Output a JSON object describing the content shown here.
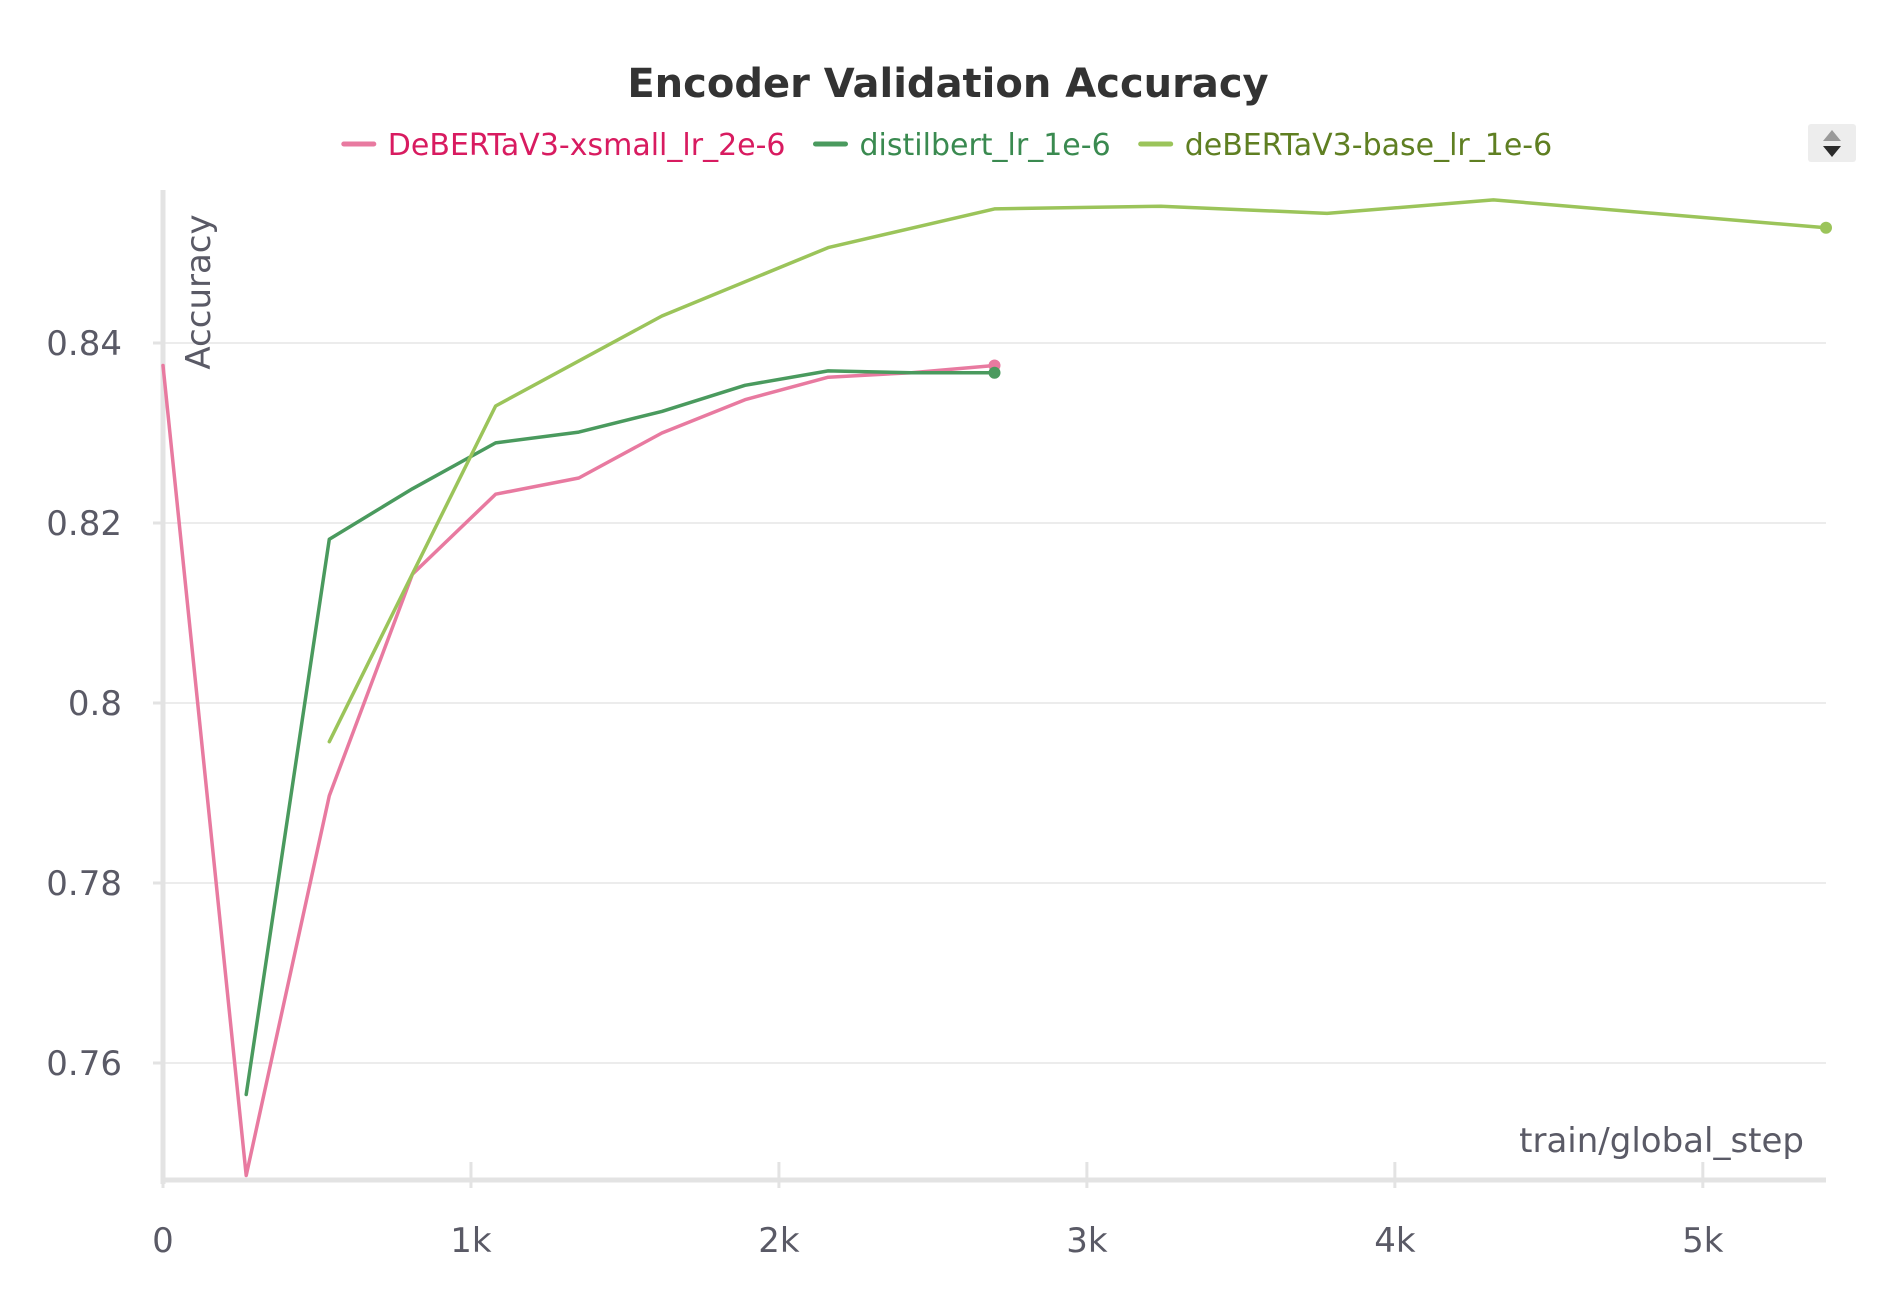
{
  "chart_data": {
    "type": "line",
    "title": "Encoder Validation Accuracy",
    "xlabel": "train/global_step",
    "ylabel": "Accuracy",
    "xlim": [
      0,
      5400
    ],
    "ylim": [
      0.747,
      0.857
    ],
    "x_ticks": [
      0,
      1000,
      2000,
      3000,
      4000,
      5000
    ],
    "x_tick_labels": [
      "0",
      "1k",
      "2k",
      "3k",
      "4k",
      "5k"
    ],
    "y_ticks": [
      0.76,
      0.78,
      0.8,
      0.82,
      0.84
    ],
    "y_tick_labels": [
      "0.76",
      "0.78",
      "0.8",
      "0.82",
      "0.84"
    ],
    "grid": true,
    "legend_position": "top",
    "series": [
      {
        "name": "DeBERTaV3-xsmall_lr_2e-6",
        "color": "#e87aa0",
        "label_color": "#d81b60",
        "x": [
          0,
          270,
          540,
          810,
          1080,
          1350,
          1620,
          1890,
          2160,
          2430,
          2700
        ],
        "y": [
          0.8375,
          0.7475,
          0.7897,
          0.8143,
          0.8232,
          0.825,
          0.83,
          0.8337,
          0.8362,
          0.8367,
          0.8375
        ]
      },
      {
        "name": "distilbert_lr_1e-6",
        "color": "#4a9a5e",
        "label_color": "#3a8a50",
        "x": [
          270,
          540,
          810,
          1080,
          1350,
          1620,
          1890,
          2160,
          2430,
          2700
        ],
        "y": [
          0.7565,
          0.8182,
          0.8238,
          0.8289,
          0.8301,
          0.8324,
          0.8353,
          0.8369,
          0.8367,
          0.8367
        ]
      },
      {
        "name": "deBERTaV3-base_lr_1e-6",
        "color": "#9bc45a",
        "label_color": "#5f7f22",
        "x": [
          540,
          1080,
          1620,
          2160,
          2700,
          3240,
          3780,
          4320,
          5400
        ],
        "y": [
          0.7957,
          0.833,
          0.843,
          0.8506,
          0.8549,
          0.8552,
          0.8544,
          0.8559,
          0.8528
        ]
      }
    ]
  }
}
